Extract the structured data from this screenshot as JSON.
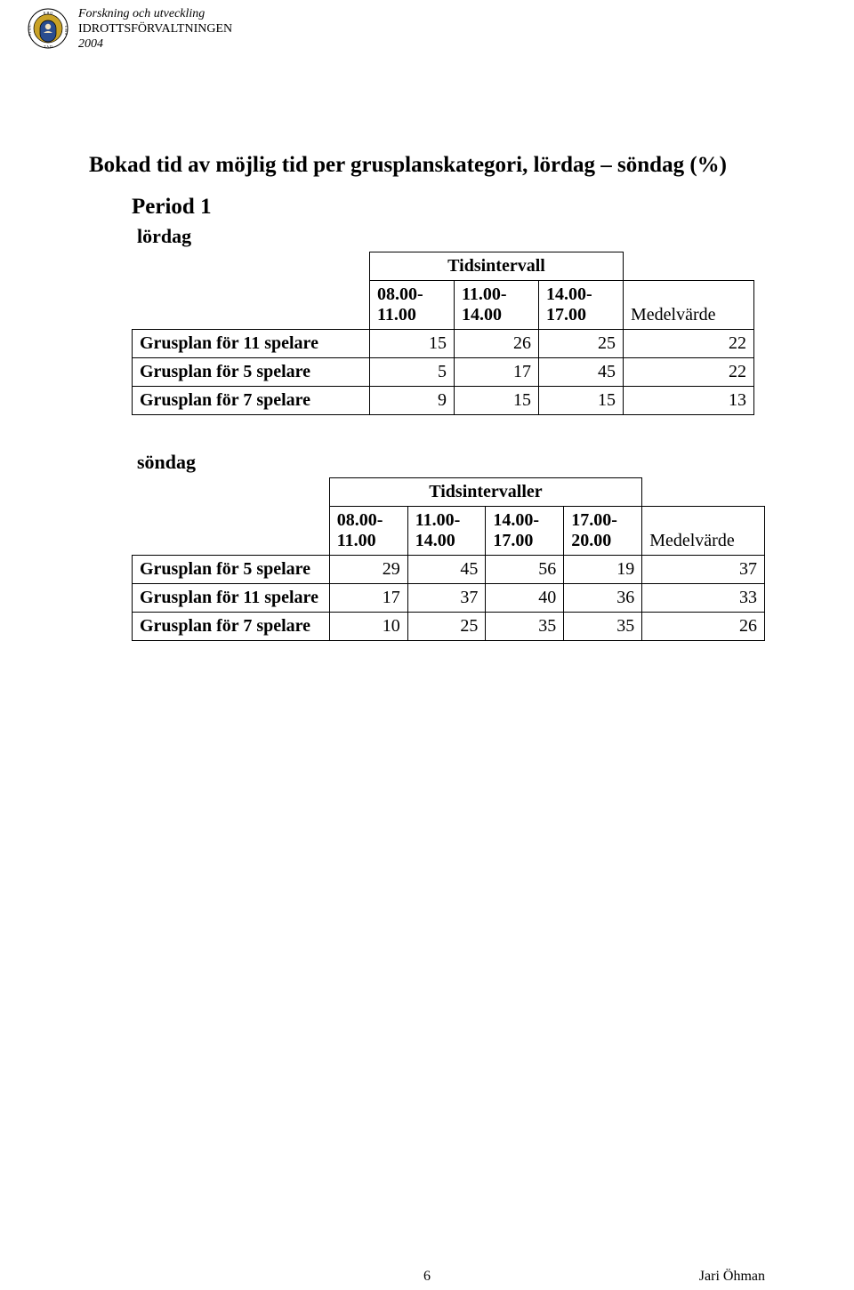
{
  "header": {
    "line1": "Forskning och utveckling",
    "line2": "IDROTTSFÖRVALTNINGEN",
    "line3": "2004"
  },
  "title": "Bokad tid av möjlig tid per grusplanskategori, lördag – söndag (%)",
  "period_label": "Period 1",
  "lordag": {
    "label": "lördag",
    "interval_group_label": "Tidsintervall",
    "columns": [
      "08.00-11.00",
      "11.00-14.00",
      "14.00-17.00"
    ],
    "medel_label": "Medelvärde",
    "rows": [
      {
        "label": "Grusplan för 11 spelare",
        "values": [
          15,
          26,
          25
        ],
        "medel": 22
      },
      {
        "label": "Grusplan för 5 spelare",
        "values": [
          5,
          17,
          45
        ],
        "medel": 22
      },
      {
        "label": "Grusplan för 7 spelare",
        "values": [
          9,
          15,
          15
        ],
        "medel": 13
      }
    ]
  },
  "sondag": {
    "label": "söndag",
    "interval_group_label": "Tidsintervaller",
    "columns": [
      "08.00-11.00",
      "11.00-14.00",
      "14.00-17.00",
      "17.00-20.00"
    ],
    "medel_label": "Medelvärde",
    "rows": [
      {
        "label": "Grusplan för 5 spelare",
        "values": [
          29,
          45,
          56,
          19
        ],
        "medel": 37
      },
      {
        "label": "Grusplan för 11 spelare",
        "values": [
          17,
          37,
          40,
          36
        ],
        "medel": 33
      },
      {
        "label": "Grusplan för 7 spelare",
        "values": [
          10,
          25,
          35,
          35
        ],
        "medel": 26
      }
    ]
  },
  "footer": {
    "page": "6",
    "author": "Jari Öhman"
  },
  "colors": {
    "page_bg": "#ffffff",
    "text": "#000000",
    "border": "#000000",
    "crest_gold": "#c9a227",
    "crest_blue": "#2a4d8f"
  }
}
